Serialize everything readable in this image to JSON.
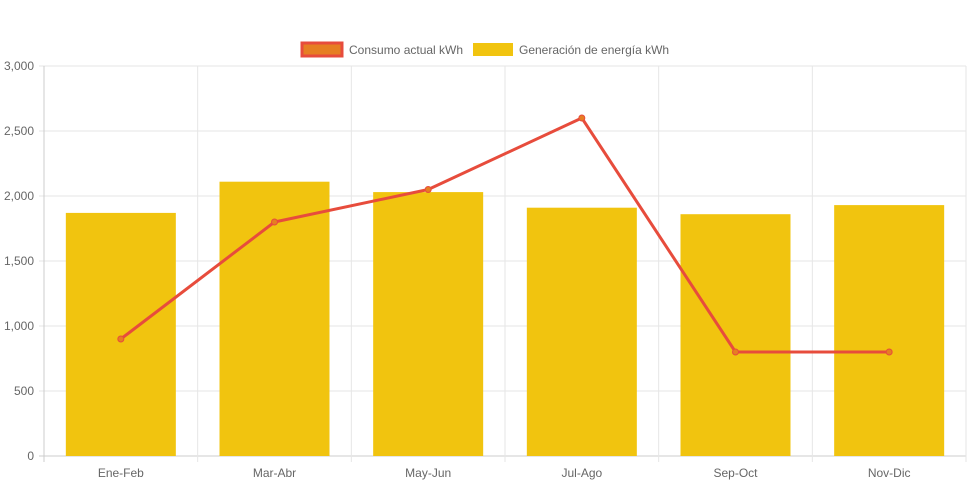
{
  "chart_data": {
    "type": "bar",
    "title": "",
    "xlabel": "",
    "ylabel": "",
    "ylim": [
      0,
      3000
    ],
    "yticks": [
      "0",
      "500",
      "1,000",
      "1,500",
      "2,000",
      "2,500",
      "3,000"
    ],
    "ytick_values": [
      0,
      500,
      1000,
      1500,
      2000,
      2500,
      3000
    ],
    "categories": [
      "Ene-Feb",
      "Mar-Abr",
      "May-Jun",
      "Jul-Ago",
      "Sep-Oct",
      "Nov-Dic"
    ],
    "grid": true,
    "legend_position": "top",
    "series": [
      {
        "name": "Consumo actual kWh",
        "type": "line",
        "color": "#e74c3c",
        "fill": "#e67e22",
        "values": [
          900,
          1800,
          2050,
          2600,
          800,
          800
        ]
      },
      {
        "name": "Generación de energía kWh",
        "type": "bar",
        "color": "#f1c40f",
        "values": [
          1870,
          2110,
          2030,
          1910,
          1860,
          1930
        ]
      }
    ]
  }
}
